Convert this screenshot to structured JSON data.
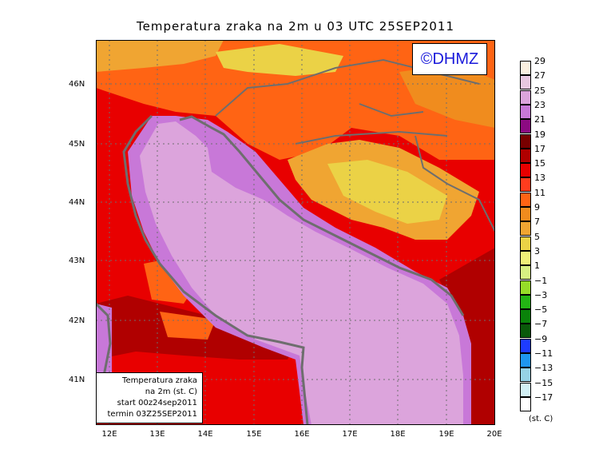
{
  "title": "Temperatura zraka na 2m u 03 UTC 25SEP2011",
  "copyright": "©DHMZ",
  "info_box": [
    "Temperatura zraka",
    "na 2m (st. C)",
    "start 00z24sep2011",
    "termin 03Z25SEP2011"
  ],
  "lat_labels": [
    "46N",
    "45N",
    "44N",
    "43N",
    "42N",
    "41N"
  ],
  "lon_labels": [
    "12E",
    "13E",
    "14E",
    "15E",
    "16E",
    "17E",
    "18E",
    "19E",
    "20E"
  ],
  "legend": {
    "labels": [
      "29",
      "27",
      "25",
      "23",
      "21",
      "19",
      "17",
      "15",
      "13",
      "11",
      "9",
      "7",
      "5",
      "3",
      "1",
      "−1",
      "−3",
      "−5",
      "−7",
      "−9",
      "−11",
      "−13",
      "−15",
      "−17"
    ],
    "colors": [
      "#fbf0e0",
      "#e8c8e0",
      "#dca4dc",
      "#c878d8",
      "#8c0a82",
      "#780000",
      "#b00000",
      "#e80000",
      "#ff3c1e",
      "#ff6414",
      "#f08c1e",
      "#f0a532",
      "#ebd246",
      "#f0f078",
      "#d7f082",
      "#96dc28",
      "#23b414",
      "#0a820a",
      "#0a5a0a",
      "#1e3cff",
      "#1e96f0",
      "#96d2e6",
      "#d2f0f5",
      "#ffffff"
    ],
    "unit": "(st. C)"
  }
}
